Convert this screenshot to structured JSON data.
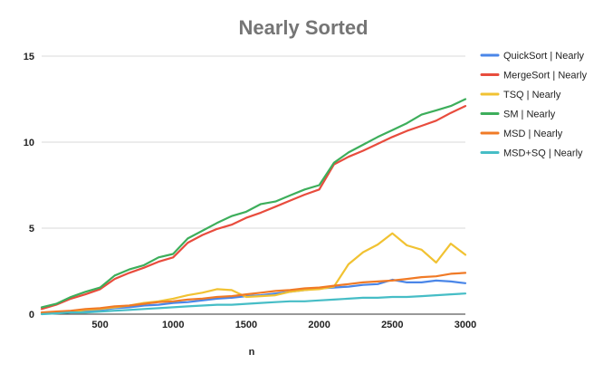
{
  "chart_data": {
    "type": "line",
    "title": "Nearly Sorted",
    "xlabel": "n",
    "ylabel": "",
    "xlim": [
      100,
      3000
    ],
    "ylim": [
      0,
      15
    ],
    "x_ticks": [
      500,
      1000,
      1500,
      2000,
      2500,
      3000
    ],
    "y_ticks": [
      0,
      5,
      10,
      15
    ],
    "grid": "horizontal",
    "legend_position": "right",
    "x": [
      100,
      200,
      300,
      400,
      500,
      600,
      700,
      800,
      900,
      1000,
      1100,
      1200,
      1300,
      1400,
      1500,
      1600,
      1700,
      1800,
      1900,
      2000,
      2100,
      2200,
      2300,
      2400,
      2500,
      2600,
      2700,
      2800,
      2900,
      3000
    ],
    "series": [
      {
        "name": "QuickSort | Nearly",
        "color": "#4a86e8",
        "values": [
          0.05,
          0.1,
          0.15,
          0.2,
          0.25,
          0.35,
          0.4,
          0.5,
          0.55,
          0.65,
          0.7,
          0.8,
          0.9,
          0.95,
          1.05,
          1.1,
          1.2,
          1.3,
          1.4,
          1.5,
          1.55,
          1.6,
          1.7,
          1.75,
          2.0,
          1.85,
          1.85,
          1.95,
          1.9,
          1.8
        ]
      },
      {
        "name": "MergeSort | Nearly",
        "color": "#e84c3d",
        "values": [
          0.3,
          0.55,
          0.9,
          1.15,
          1.45,
          2.05,
          2.4,
          2.7,
          3.05,
          3.3,
          4.15,
          4.6,
          4.95,
          5.2,
          5.6,
          5.9,
          6.25,
          6.6,
          6.95,
          7.25,
          8.7,
          9.15,
          9.5,
          9.9,
          10.3,
          10.65,
          10.95,
          11.25,
          11.7,
          12.1
        ]
      },
      {
        "name": "TSQ | Nearly",
        "color": "#f1c232",
        "values": [
          0.05,
          0.1,
          0.15,
          0.25,
          0.3,
          0.4,
          0.5,
          0.65,
          0.75,
          0.9,
          1.1,
          1.25,
          1.45,
          1.4,
          1.0,
          1.05,
          1.1,
          1.3,
          1.4,
          1.45,
          1.6,
          2.9,
          3.6,
          4.05,
          4.7,
          4.0,
          3.75,
          3.0,
          4.1,
          3.45
        ]
      },
      {
        "name": "SM | Nearly",
        "color": "#3dae5b",
        "values": [
          0.4,
          0.6,
          1.0,
          1.3,
          1.55,
          2.25,
          2.6,
          2.85,
          3.3,
          3.5,
          4.4,
          4.85,
          5.3,
          5.7,
          5.95,
          6.4,
          6.55,
          6.9,
          7.25,
          7.5,
          8.8,
          9.4,
          9.85,
          10.3,
          10.7,
          11.1,
          11.6,
          11.85,
          12.1,
          12.5
        ]
      },
      {
        "name": "MSD | Nearly",
        "color": "#f07a26",
        "values": [
          0.1,
          0.15,
          0.2,
          0.3,
          0.35,
          0.45,
          0.5,
          0.6,
          0.7,
          0.75,
          0.85,
          0.9,
          1.0,
          1.05,
          1.15,
          1.25,
          1.35,
          1.4,
          1.5,
          1.55,
          1.65,
          1.75,
          1.85,
          1.9,
          1.95,
          2.05,
          2.15,
          2.2,
          2.35,
          2.4
        ]
      },
      {
        "name": "MSD+SQ | Nearly",
        "color": "#46bdc6",
        "values": [
          0.0,
          0.05,
          0.1,
          0.1,
          0.15,
          0.2,
          0.25,
          0.3,
          0.35,
          0.4,
          0.45,
          0.5,
          0.55,
          0.55,
          0.6,
          0.65,
          0.7,
          0.75,
          0.75,
          0.8,
          0.85,
          0.9,
          0.95,
          0.95,
          1.0,
          1.0,
          1.05,
          1.1,
          1.15,
          1.2
        ]
      }
    ]
  }
}
